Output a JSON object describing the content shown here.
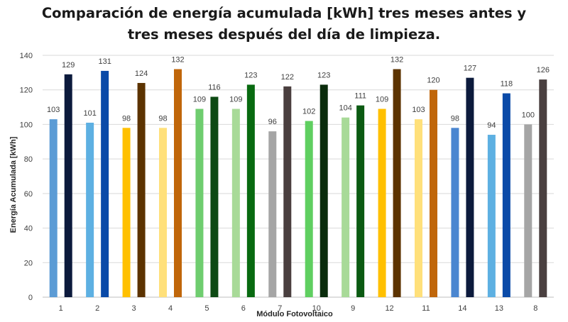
{
  "chart_data": {
    "type": "bar",
    "title_line1": "Comparación de energía acumulada [kWh] tres meses antes y",
    "title_line2": "tres meses después del día de limpieza.",
    "xlabel": "Módulo Fotovoltaico",
    "ylabel": "Energía Acumulada [kWh]",
    "ylim": [
      0,
      140
    ],
    "yticks": [
      "0",
      "20",
      "40",
      "60",
      "80",
      "100",
      "120",
      "140"
    ],
    "grid": true,
    "legend": "none",
    "categories": [
      "1",
      "2",
      "3",
      "4",
      "5",
      "6",
      "7",
      "10",
      "9",
      "12",
      "11",
      "14",
      "13",
      "8"
    ],
    "series": [
      {
        "values": [
          103,
          101,
          98,
          98,
          109,
          109,
          96,
          102,
          104,
          109,
          103,
          98,
          94,
          100
        ],
        "colors": [
          "#5b9bd5",
          "#5db0e2",
          "#ffc000",
          "#ffe07a",
          "#6fcd6f",
          "#a8da98",
          "#a5a5a5",
          "#5fcf60",
          "#a8da98",
          "#ffc000",
          "#ffe07a",
          "#4a86d0",
          "#5db0e2",
          "#a5a5a5"
        ]
      },
      {
        "values": [
          129,
          131,
          124,
          132,
          116,
          123,
          122,
          123,
          111,
          132,
          120,
          127,
          118,
          126
        ],
        "colors": [
          "#0c1a3c",
          "#0a4aa8",
          "#5c3300",
          "#c0660a",
          "#0d4a14",
          "#086a10",
          "#4a3f3f",
          "#0a2c0c",
          "#0b5a12",
          "#5c3300",
          "#c0660a",
          "#0c1a3c",
          "#0a4aa8",
          "#4a4040"
        ]
      }
    ]
  }
}
